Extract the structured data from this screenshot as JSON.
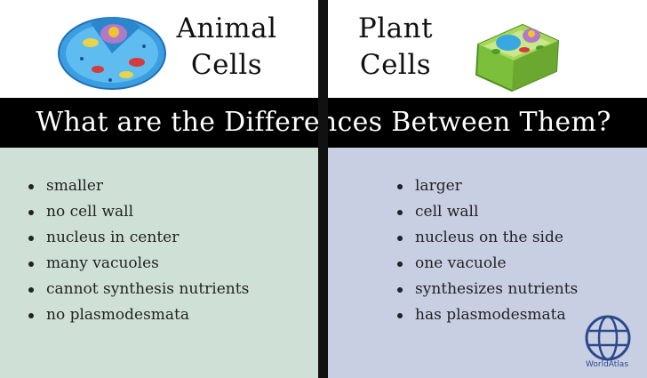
{
  "header": {
    "animal_title_line1": "Animal",
    "animal_title_line2": "Cells",
    "plant_title_line1": "Plant",
    "plant_title_line2": "Cells"
  },
  "banner": {
    "text": "What are the Differences Between Them?"
  },
  "animal": {
    "icon": "animal-cell-illustration",
    "items": [
      {
        "label": "smaller"
      },
      {
        "label": "no cell wall"
      },
      {
        "label": "nucleus in center"
      },
      {
        "label": "many vacuoles"
      },
      {
        "label": "cannot synthesis nutrients"
      },
      {
        "label": "no plasmodesmata"
      }
    ]
  },
  "plant": {
    "icon": "plant-cell-illustration",
    "items": [
      {
        "label": "larger"
      },
      {
        "label": "cell wall"
      },
      {
        "label": "nucleus on the side"
      },
      {
        "label": "one vacuole"
      },
      {
        "label": "synthesizes nutrients"
      },
      {
        "label": "has plasmodesmata"
      }
    ]
  },
  "logo": {
    "text": "WorldAtlas",
    "icon": "globe-icon"
  },
  "colors": {
    "animal_bg": "#cfe1d6",
    "plant_bg": "#c9cfe3",
    "banner_bg": "#000000",
    "logo_color": "#2b4a8c"
  }
}
